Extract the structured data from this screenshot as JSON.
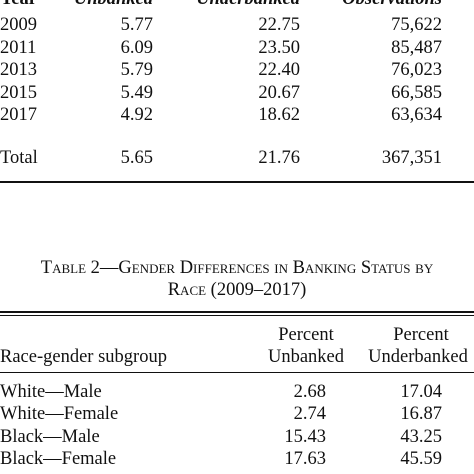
{
  "table1": {
    "header": [
      "Year",
      "Unbanked",
      "Underbanked",
      "Observations"
    ],
    "rows": [
      [
        "2009",
        "5.77",
        "22.75",
        "75,622"
      ],
      [
        "2011",
        "6.09",
        "23.50",
        "85,487"
      ],
      [
        "2013",
        "5.79",
        "22.40",
        "76,023"
      ],
      [
        "2015",
        "5.49",
        "20.67",
        "66,585"
      ],
      [
        "2017",
        "4.92",
        "18.62",
        "63,634"
      ]
    ],
    "total": [
      "Total",
      "5.65",
      "21.76",
      "367,351"
    ]
  },
  "table2": {
    "title": [
      "Table 2—Gender Differences in Banking Status by",
      "Race (2009–2017)"
    ],
    "header": {
      "top": [
        "Percent",
        "Percent"
      ],
      "bottom": [
        "Race-gender subgroup",
        "Unbanked",
        "Underbanked"
      ]
    },
    "rows": [
      [
        "White—Male",
        "2.68",
        "17.04"
      ],
      [
        "White—Female",
        "2.74",
        "16.87"
      ],
      [
        "Black—Male",
        "15.43",
        "43.25"
      ],
      [
        "Black—Female",
        "17.63",
        "45.59"
      ]
    ]
  }
}
